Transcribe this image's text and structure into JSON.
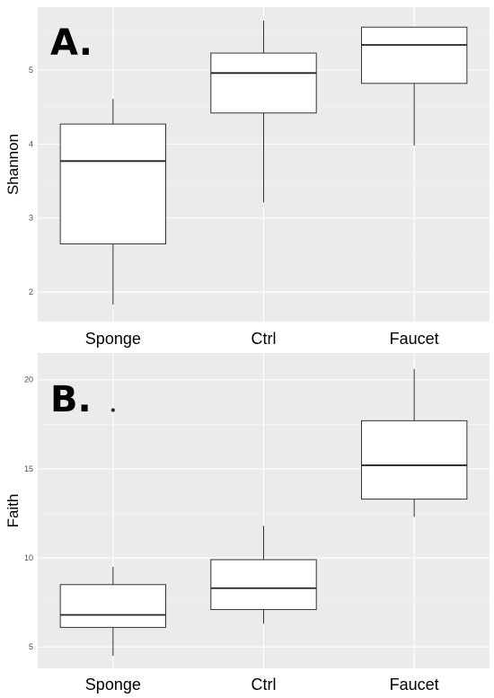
{
  "chart_data": [
    {
      "type": "box",
      "panel_label": "A.",
      "ylabel": "Shannon",
      "categories": [
        "Sponge",
        "Ctrl",
        "Faucet"
      ],
      "ylim": [
        1.6,
        5.85
      ],
      "yticks": [
        2,
        3,
        4,
        5
      ],
      "grid": true,
      "boxes": [
        {
          "category": "Sponge",
          "min": 1.83,
          "q1": 2.65,
          "median": 3.77,
          "q3": 4.27,
          "max": 4.61,
          "outliers": []
        },
        {
          "category": "Ctrl",
          "min": 3.21,
          "q1": 4.42,
          "median": 4.96,
          "q3": 5.23,
          "max": 5.67,
          "outliers": []
        },
        {
          "category": "Faucet",
          "min": 3.98,
          "q1": 4.82,
          "median": 5.34,
          "q3": 5.58,
          "max": 5.58,
          "outliers": []
        }
      ]
    },
    {
      "type": "box",
      "panel_label": "B.",
      "ylabel": "Faith",
      "categories": [
        "Sponge",
        "Ctrl",
        "Faucet"
      ],
      "ylim": [
        3.8,
        21.5
      ],
      "yticks": [
        5,
        10,
        15,
        20
      ],
      "grid": true,
      "boxes": [
        {
          "category": "Sponge",
          "min": 4.5,
          "q1": 6.1,
          "median": 6.8,
          "q3": 8.5,
          "max": 9.5,
          "outliers": [
            18.3
          ]
        },
        {
          "category": "Ctrl",
          "min": 6.3,
          "q1": 7.1,
          "median": 8.3,
          "q3": 9.9,
          "max": 11.8,
          "outliers": []
        },
        {
          "category": "Faucet",
          "min": 12.3,
          "q1": 13.3,
          "median": 15.2,
          "q3": 17.7,
          "max": 20.6,
          "outliers": []
        }
      ]
    }
  ]
}
